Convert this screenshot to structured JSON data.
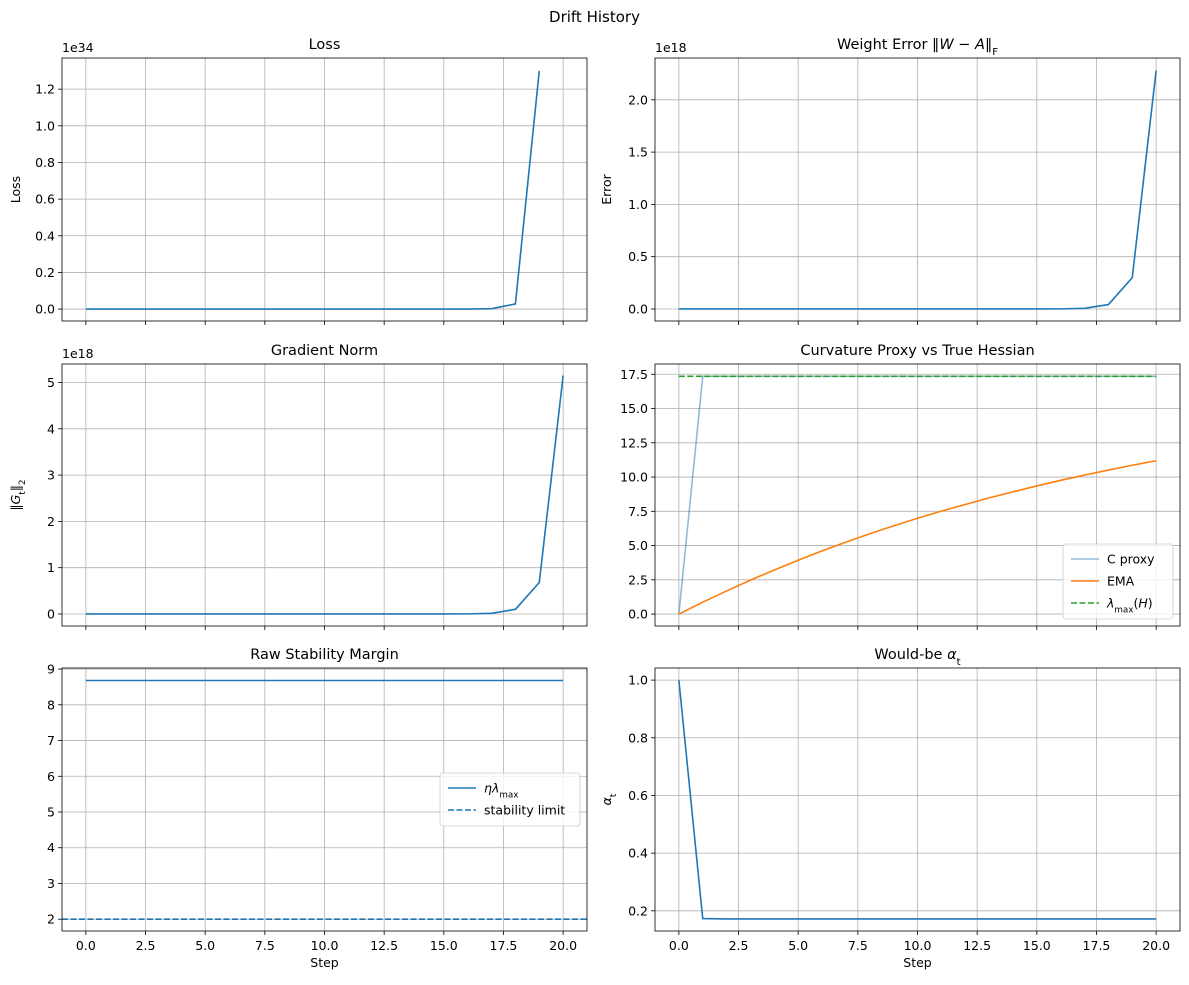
{
  "figure": {
    "suptitle": "Drift History"
  },
  "colors": {
    "blue": "#1f77b4",
    "orange": "#ff7f0e",
    "green": "#2ca02c",
    "grid": "#b0b0b0"
  },
  "chart_data": [
    {
      "type": "line",
      "title": "Loss",
      "xlabel": "",
      "ylabel": "Loss",
      "offset_text": "1e34",
      "xlim": [
        -1,
        21
      ],
      "ylim": [
        -0.065,
        1.37
      ],
      "xticks": [
        0,
        2.5,
        5,
        7.5,
        10,
        12.5,
        15,
        17.5,
        20
      ],
      "xtick_labels_visible": false,
      "yticks": [
        0.0,
        0.2,
        0.4,
        0.6,
        0.8,
        1.0,
        1.2
      ],
      "ytick_labels": [
        "0.0",
        "0.2",
        "0.4",
        "0.6",
        "0.8",
        "1.0",
        "1.2"
      ],
      "grid": true,
      "series": [
        {
          "color": "#1f77b4",
          "dash": "solid",
          "opacity": 1,
          "x": [
            0,
            1,
            2,
            3,
            4,
            5,
            6,
            7,
            8,
            9,
            10,
            11,
            12,
            13,
            14,
            15,
            16,
            17,
            18,
            19
          ],
          "y": [
            0,
            0,
            0,
            0,
            0,
            0,
            0,
            0,
            0,
            0,
            0,
            0,
            0,
            0,
            0,
            0,
            0,
            0.002,
            0.028,
            1.3
          ]
        }
      ]
    },
    {
      "type": "line",
      "title": "Weight Error ‖W − A‖F",
      "xlabel": "",
      "ylabel": "Error",
      "offset_text": "1e18",
      "xlim": [
        -1,
        21
      ],
      "ylim": [
        -0.115,
        2.4
      ],
      "xticks": [
        0,
        2.5,
        5,
        7.5,
        10,
        12.5,
        15,
        17.5,
        20
      ],
      "xtick_labels_visible": false,
      "yticks": [
        0.0,
        0.5,
        1.0,
        1.5,
        2.0
      ],
      "ytick_labels": [
        "0.0",
        "0.5",
        "1.0",
        "1.5",
        "2.0"
      ],
      "grid": true,
      "series": [
        {
          "color": "#1f77b4",
          "dash": "solid",
          "opacity": 1,
          "x": [
            0,
            1,
            2,
            3,
            4,
            5,
            6,
            7,
            8,
            9,
            10,
            11,
            12,
            13,
            14,
            15,
            16,
            17,
            18,
            19,
            20
          ],
          "y": [
            0,
            0,
            0,
            0,
            0,
            0,
            0,
            0,
            0,
            0,
            0,
            0,
            0,
            0,
            0,
            0,
            0.001,
            0.006,
            0.042,
            0.3,
            2.28
          ]
        }
      ]
    },
    {
      "type": "line",
      "title": "Gradient Norm",
      "xlabel": "",
      "ylabel": "‖Gt‖2",
      "offset_text": "1e18",
      "xlim": [
        -1,
        21
      ],
      "ylim": [
        -0.26,
        5.4
      ],
      "xticks": [
        0,
        2.5,
        5,
        7.5,
        10,
        12.5,
        15,
        17.5,
        20
      ],
      "xtick_labels_visible": false,
      "yticks": [
        0,
        1,
        2,
        3,
        4,
        5
      ],
      "ytick_labels": [
        "0",
        "1",
        "2",
        "3",
        "4",
        "5"
      ],
      "grid": true,
      "series": [
        {
          "color": "#1f77b4",
          "dash": "solid",
          "opacity": 1,
          "x": [
            0,
            1,
            2,
            3,
            4,
            5,
            6,
            7,
            8,
            9,
            10,
            11,
            12,
            13,
            14,
            15,
            16,
            17,
            18,
            19,
            20
          ],
          "y": [
            0,
            0,
            0,
            0,
            0,
            0,
            0,
            0,
            0,
            0,
            0,
            0,
            0,
            0,
            0,
            0,
            0.002,
            0.015,
            0.1,
            0.68,
            5.15
          ]
        }
      ]
    },
    {
      "type": "line",
      "title": "Curvature Proxy vs True Hessian",
      "xlabel": "",
      "ylabel": "",
      "offset_text": "",
      "xlim": [
        -1,
        21
      ],
      "ylim": [
        -0.87,
        18.25
      ],
      "xticks": [
        0,
        2.5,
        5,
        7.5,
        10,
        12.5,
        15,
        17.5,
        20
      ],
      "xtick_labels_visible": false,
      "yticks": [
        0.0,
        2.5,
        5.0,
        7.5,
        10.0,
        12.5,
        15.0,
        17.5
      ],
      "ytick_labels": [
        "0.0",
        "2.5",
        "5.0",
        "7.5",
        "10.0",
        "12.5",
        "15.0",
        "17.5"
      ],
      "grid": true,
      "legend": {
        "loc": "lower-right"
      },
      "series": [
        {
          "name": "C proxy",
          "color": "#1f77b4",
          "dash": "solid",
          "opacity": 0.5,
          "x": [
            0,
            1,
            2,
            3,
            4,
            5,
            6,
            7,
            8,
            9,
            10,
            11,
            12,
            13,
            14,
            15,
            16,
            17,
            18,
            19,
            20
          ],
          "y": [
            0,
            17.35,
            17.35,
            17.35,
            17.35,
            17.35,
            17.35,
            17.35,
            17.35,
            17.35,
            17.35,
            17.35,
            17.35,
            17.35,
            17.35,
            17.35,
            17.35,
            17.35,
            17.35,
            17.35,
            17.35
          ]
        },
        {
          "name": "EMA",
          "color": "#ff7f0e",
          "dash": "solid",
          "opacity": 1,
          "x": [
            0,
            1,
            2,
            3,
            4,
            5,
            6,
            7,
            8,
            9,
            10,
            11,
            12,
            13,
            14,
            15,
            16,
            17,
            18,
            19,
            20
          ],
          "y": [
            0,
            0.87,
            1.69,
            2.48,
            3.22,
            3.93,
            4.61,
            5.25,
            5.86,
            6.44,
            6.99,
            7.51,
            8.0,
            8.48,
            8.92,
            9.35,
            9.76,
            10.14,
            10.51,
            10.86,
            11.19
          ]
        },
        {
          "name": "λmax(H)",
          "color": "#2ca02c",
          "dash": "dashed",
          "opacity": 1,
          "x": [
            0,
            20
          ],
          "y": [
            17.35,
            17.35
          ]
        }
      ]
    },
    {
      "type": "line",
      "title": "Raw Stability Margin",
      "xlabel": "Step",
      "ylabel": "",
      "offset_text": "",
      "xlim": [
        -1,
        21
      ],
      "ylim": [
        1.67,
        9.03
      ],
      "xticks": [
        0,
        2.5,
        5,
        7.5,
        10,
        12.5,
        15,
        17.5,
        20
      ],
      "xtick_labels": [
        "0.0",
        "2.5",
        "5.0",
        "7.5",
        "10.0",
        "12.5",
        "15.0",
        "17.5",
        "20.0"
      ],
      "xtick_labels_visible": true,
      "yticks": [
        2,
        3,
        4,
        5,
        6,
        7,
        8,
        9
      ],
      "ytick_labels": [
        "2",
        "3",
        "4",
        "5",
        "6",
        "7",
        "8",
        "9"
      ],
      "grid": true,
      "legend": {
        "loc": "center-right"
      },
      "series": [
        {
          "name": "ηλmax",
          "color": "#1f77b4",
          "dash": "solid",
          "opacity": 1,
          "x": [
            0,
            20
          ],
          "y": [
            8.68,
            8.68
          ]
        },
        {
          "name": "stability limit",
          "color": "#1f77b4",
          "dash": "dashed",
          "opacity": 1,
          "x": [
            -1,
            21
          ],
          "y": [
            2,
            2
          ]
        }
      ]
    },
    {
      "type": "line",
      "title": "Would-be αt",
      "xlabel": "Step",
      "ylabel": "αt",
      "offset_text": "",
      "xlim": [
        -1,
        21
      ],
      "ylim": [
        0.13,
        1.042
      ],
      "xticks": [
        0,
        2.5,
        5,
        7.5,
        10,
        12.5,
        15,
        17.5,
        20
      ],
      "xtick_labels": [
        "0.0",
        "2.5",
        "5.0",
        "7.5",
        "10.0",
        "12.5",
        "15.0",
        "17.5",
        "20.0"
      ],
      "xtick_labels_visible": true,
      "yticks": [
        0.2,
        0.4,
        0.6,
        0.8,
        1.0
      ],
      "ytick_labels": [
        "0.2",
        "0.4",
        "0.6",
        "0.8",
        "1.0"
      ],
      "grid": true,
      "series": [
        {
          "color": "#1f77b4",
          "dash": "solid",
          "opacity": 1,
          "x": [
            0,
            1,
            2,
            3,
            4,
            5,
            6,
            7,
            8,
            9,
            10,
            11,
            12,
            13,
            14,
            15,
            16,
            17,
            18,
            19,
            20
          ],
          "y": [
            1.0,
            0.173,
            0.172,
            0.172,
            0.172,
            0.172,
            0.172,
            0.172,
            0.172,
            0.172,
            0.172,
            0.172,
            0.172,
            0.172,
            0.172,
            0.172,
            0.172,
            0.172,
            0.172,
            0.172,
            0.172
          ]
        }
      ]
    }
  ]
}
